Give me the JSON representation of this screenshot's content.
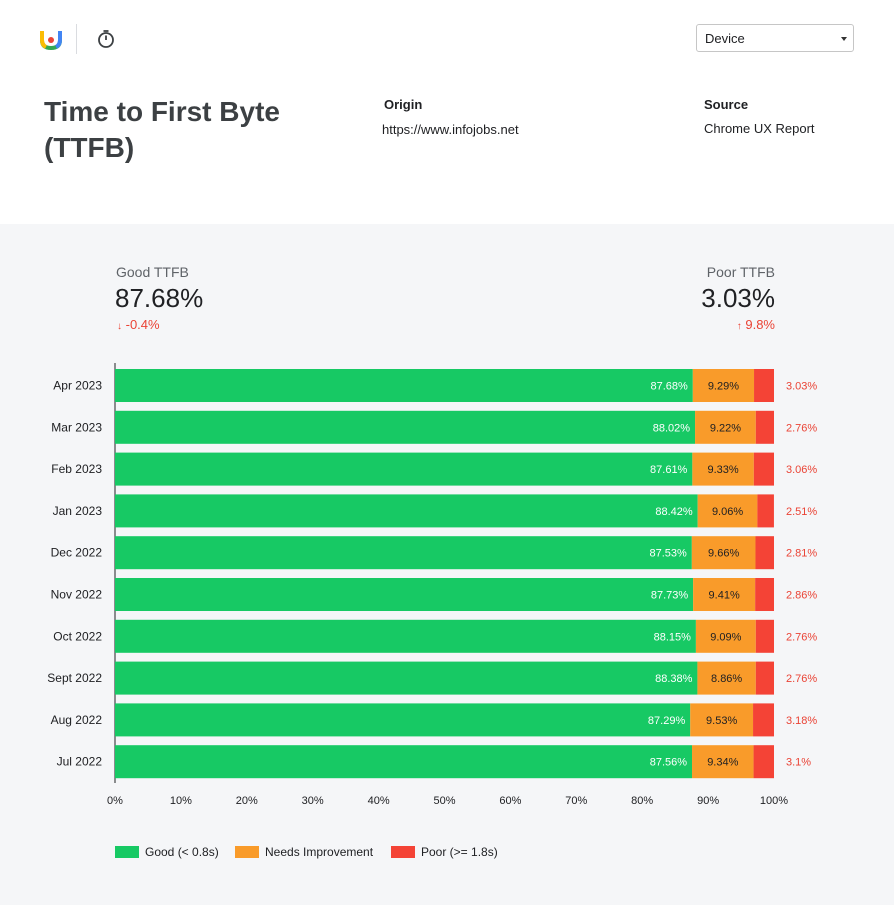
{
  "header": {
    "device_select": {
      "selected": "Device"
    }
  },
  "page": {
    "title": "Time to First Byte (TTFB)",
    "origin_label": "Origin",
    "origin_value": "https://www.infojobs.net",
    "source_label": "Source",
    "source_value": "Chrome UX Report"
  },
  "summary": {
    "good": {
      "label": "Good TTFB",
      "value": "87.68%",
      "change": "-0.4%",
      "direction": "down"
    },
    "poor": {
      "label": "Poor TTFB",
      "value": "3.03%",
      "change": "9.8%",
      "direction": "up"
    }
  },
  "colors": {
    "good": "#17c964",
    "needs_improvement": "#f99b2a",
    "poor": "#f44336",
    "poor_text": "#ea4335"
  },
  "legend": [
    {
      "label": "Good (< 0.8s)",
      "color": "#17c964"
    },
    {
      "label": "Needs Improvement",
      "color": "#f99b2a"
    },
    {
      "label": "Poor (>= 1.8s)",
      "color": "#f44336"
    }
  ],
  "chart_data": {
    "type": "bar",
    "orientation": "horizontal",
    "stacked": true,
    "categories": [
      "Apr 2023",
      "Mar 2023",
      "Feb 2023",
      "Jan 2023",
      "Dec 2022",
      "Nov 2022",
      "Oct 2022",
      "Sept 2022",
      "Aug 2022",
      "Jul 2022"
    ],
    "series": [
      {
        "name": "Good (< 0.8s)",
        "values": [
          87.68,
          88.02,
          87.61,
          88.42,
          87.53,
          87.73,
          88.15,
          88.38,
          87.29,
          87.56
        ]
      },
      {
        "name": "Needs Improvement",
        "values": [
          9.29,
          9.22,
          9.33,
          9.06,
          9.66,
          9.41,
          9.09,
          8.86,
          9.53,
          9.34
        ]
      },
      {
        "name": "Poor (>= 1.8s)",
        "values": [
          3.03,
          2.76,
          3.06,
          2.51,
          2.81,
          2.86,
          2.76,
          2.76,
          3.18,
          3.1
        ]
      }
    ],
    "data_labels": [
      [
        "87.68%",
        "88.02%",
        "87.61%",
        "88.42%",
        "87.53%",
        "87.73%",
        "88.15%",
        "88.38%",
        "87.29%",
        "87.56%"
      ],
      [
        "9.29%",
        "9.22%",
        "9.33%",
        "9.06%",
        "9.66%",
        "9.41%",
        "9.09%",
        "8.86%",
        "9.53%",
        "9.34%"
      ],
      [
        "3.03%",
        "2.76%",
        "3.06%",
        "2.51%",
        "2.81%",
        "2.86%",
        "2.76%",
        "2.76%",
        "3.18%",
        "3.1%"
      ]
    ],
    "xlim": [
      0,
      100
    ],
    "x_ticks": [
      "0%",
      "10%",
      "20%",
      "30%",
      "40%",
      "50%",
      "60%",
      "70%",
      "80%",
      "90%",
      "100%"
    ],
    "legend_position": "bottom-left",
    "grid": false
  }
}
